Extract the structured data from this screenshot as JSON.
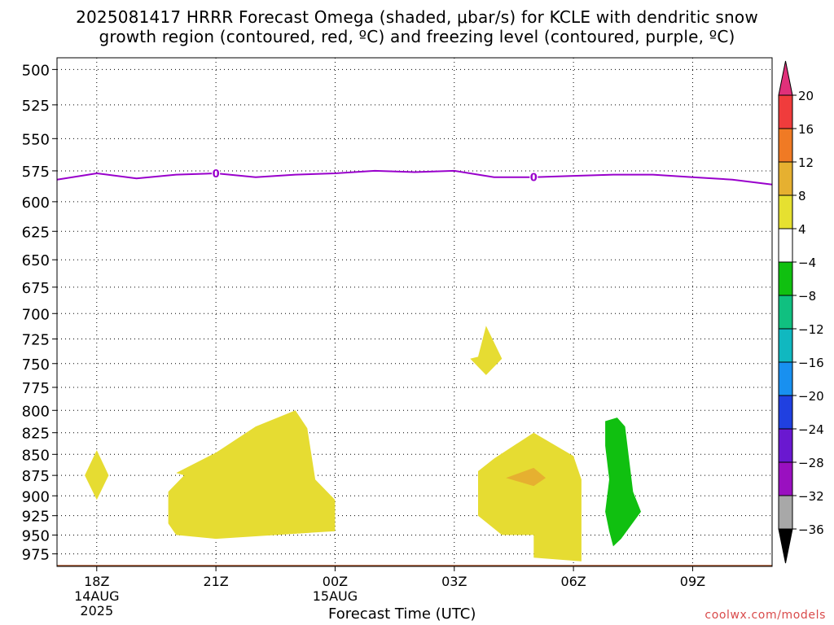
{
  "header": {
    "title_line_1": "2025081417 HRRR Forecast Omega (shaded, μbar/s) for KCLE with dendritic snow",
    "title_line_2": "growth region (contoured, red, ºC) and freezing level (contoured, purple, ºC)"
  },
  "footer": {
    "credit": "coolwx.com/models"
  },
  "chart_data": {
    "type": "area",
    "title": "2025081417 HRRR Forecast Omega (shaded, μbar/s) for KCLE with dendritic snow growth region (contoured, red, ºC) and freezing level (contoured, purple, ºC)",
    "xlabel": "Forecast Time (UTC)",
    "ylabel": "",
    "x_range_hours": [
      -1,
      17
    ],
    "y_range_hPa": [
      492,
      992
    ],
    "y_scale": "log-pressure",
    "grid": true,
    "x_ticks": [
      {
        "hour": 0,
        "label": "18Z",
        "sub": [
          "14AUG",
          "2025"
        ]
      },
      {
        "hour": 3,
        "label": "21Z",
        "sub": []
      },
      {
        "hour": 6,
        "label": "00Z",
        "sub": [
          "15AUG"
        ]
      },
      {
        "hour": 9,
        "label": "03Z",
        "sub": []
      },
      {
        "hour": 12,
        "label": "06Z",
        "sub": []
      },
      {
        "hour": 15,
        "label": "09Z",
        "sub": []
      }
    ],
    "y_ticks": [
      500,
      525,
      550,
      575,
      600,
      625,
      650,
      675,
      700,
      725,
      750,
      775,
      800,
      825,
      850,
      875,
      900,
      925,
      950,
      975
    ],
    "colorbar": {
      "labels": [
        "20",
        "16",
        "12",
        "8",
        "4",
        "−4",
        "−8",
        "−12",
        "−16",
        "−20",
        "−24",
        "−28",
        "−32",
        "−36"
      ],
      "colors": [
        "#e0307a",
        "#f03c3c",
        "#f07a24",
        "#e6b030",
        "#e6e030",
        "#ffffff",
        "#10c010",
        "#10c080",
        "#10b8c0",
        "#1890f0",
        "#2040e0",
        "#6a18d0",
        "#9a10c0",
        "#a8a8a8",
        "#000000"
      ]
    },
    "freezing_level": {
      "color": "#9900cc",
      "label": "0",
      "label_hours": [
        3,
        11
      ],
      "points": [
        [
          -1,
          582
        ],
        [
          0,
          577
        ],
        [
          1,
          581
        ],
        [
          2,
          578
        ],
        [
          3,
          577
        ],
        [
          4,
          580
        ],
        [
          5,
          578
        ],
        [
          6,
          577
        ],
        [
          7,
          575
        ],
        [
          8,
          576
        ],
        [
          9,
          575
        ],
        [
          10,
          580
        ],
        [
          11,
          580
        ],
        [
          12,
          579
        ],
        [
          13,
          578
        ],
        [
          14,
          578
        ],
        [
          15,
          580
        ],
        [
          16,
          582
        ],
        [
          17,
          586
        ]
      ]
    },
    "omega_regions": [
      {
        "level": "4 to 8",
        "color": "#e6dc32",
        "points": [
          [
            0,
            845
          ],
          [
            0.3,
            875
          ],
          [
            0,
            905
          ],
          [
            -0.3,
            875
          ]
        ]
      },
      {
        "level": "4 to 8",
        "color": "#e6dc32",
        "points": [
          [
            2,
            872
          ],
          [
            3,
            848
          ],
          [
            4,
            818
          ],
          [
            5,
            800
          ],
          [
            5.3,
            820
          ],
          [
            5.5,
            880
          ],
          [
            6,
            905
          ],
          [
            6,
            945
          ],
          [
            3,
            955
          ],
          [
            2,
            950
          ],
          [
            1.8,
            935
          ],
          [
            1.8,
            895
          ],
          [
            2.2,
            875
          ]
        ]
      },
      {
        "level": "4 to 8",
        "color": "#e6dc32",
        "points": [
          [
            9.6,
            870
          ],
          [
            10,
            855
          ],
          [
            11,
            825
          ],
          [
            12,
            852
          ],
          [
            12.2,
            880
          ],
          [
            12.2,
            925
          ],
          [
            12.2,
            985
          ],
          [
            11,
            980
          ],
          [
            11,
            950
          ],
          [
            10.2,
            950
          ],
          [
            9.6,
            925
          ],
          [
            9.6,
            900
          ]
        ]
      },
      {
        "level": "4 to 8",
        "color": "#e6dc32",
        "points": [
          [
            9.6,
            743
          ],
          [
            9.8,
            712
          ],
          [
            10.2,
            745
          ],
          [
            9.8,
            762
          ],
          [
            9.4,
            745
          ]
        ]
      },
      {
        "level": "8 to 12",
        "color": "#e6b030",
        "points": [
          [
            10.3,
            878
          ],
          [
            11,
            866
          ],
          [
            11.3,
            878
          ],
          [
            11,
            888
          ]
        ]
      },
      {
        "level": "-4 to -8",
        "color": "#10c010",
        "points": [
          [
            12.8,
            812
          ],
          [
            13.1,
            808
          ],
          [
            13.3,
            818
          ],
          [
            13.5,
            895
          ],
          [
            13.7,
            920
          ],
          [
            13.2,
            955
          ],
          [
            13,
            965
          ],
          [
            12.9,
            945
          ],
          [
            12.8,
            920
          ],
          [
            12.9,
            880
          ],
          [
            12.8,
            840
          ]
        ]
      }
    ],
    "ground": {
      "color": "#a0522d",
      "pressure_hPa": 990
    }
  }
}
